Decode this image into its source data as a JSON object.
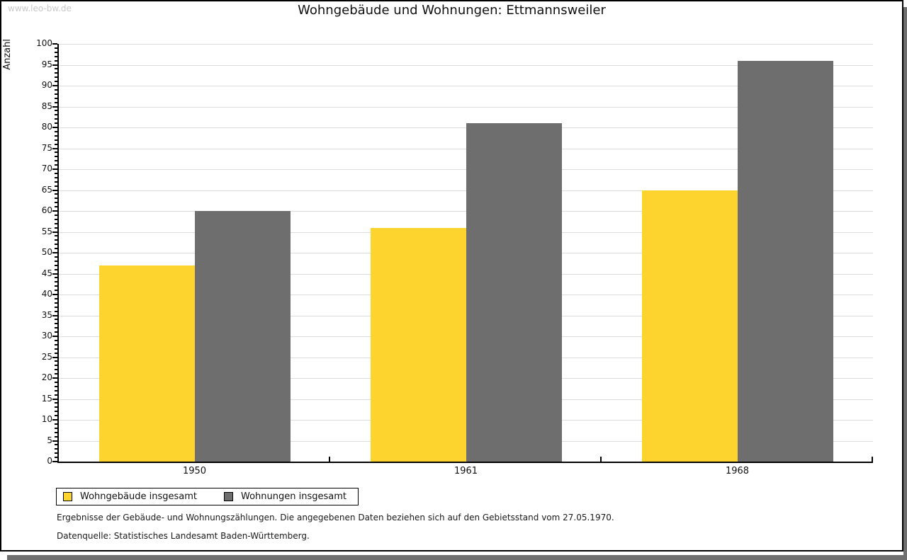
{
  "watermark": "www.leo-bw.de",
  "title": "Wohngebäude und Wohnungen: Ettmannsweiler",
  "footnotes": [
    "Ergebnisse der Gebäude- und Wohnungszählungen. Die angegebenen Daten beziehen sich auf den Gebietsstand vom 27.05.1970.",
    "Datenquelle: Statistisches Landesamt Baden-Württemberg."
  ],
  "legend": {
    "items": [
      {
        "key": "wohngebaeude-insgesamt",
        "label": "Wohngebäude insgesamt",
        "color": "#fcd42d"
      },
      {
        "key": "wohnungen-insgesamt",
        "label": "Wohnungen insgesamt",
        "color": "#6e6e6e"
      }
    ]
  },
  "colors": {
    "bar_yellow": "#fcd42d",
    "bar_gray": "#6e6e6e",
    "gridline": "#dcdcdc",
    "axis": "#000000",
    "frame_shadow": "#6f6f6f",
    "watermark": "#c8c8c8"
  },
  "chart_data": {
    "type": "bar",
    "title": "Wohngebäude und Wohnungen: Ettmannsweiler",
    "categories": [
      "1950",
      "1961",
      "1968"
    ],
    "series": [
      {
        "key": "wohngebaeude-insgesamt",
        "name": "Wohngebäude insgesamt",
        "color": "#fcd42d",
        "values": [
          47,
          56,
          65
        ]
      },
      {
        "key": "wohnungen-insgesamt",
        "name": "Wohnungen insgesamt",
        "color": "#6e6e6e",
        "values": [
          60,
          81,
          96
        ]
      }
    ],
    "xlabel": "",
    "ylabel": "Anzahl",
    "ylim": [
      0,
      100
    ],
    "y_major_step": 5,
    "y_minor_step": 1,
    "grid": true,
    "legend_position": "bottom-left"
  }
}
